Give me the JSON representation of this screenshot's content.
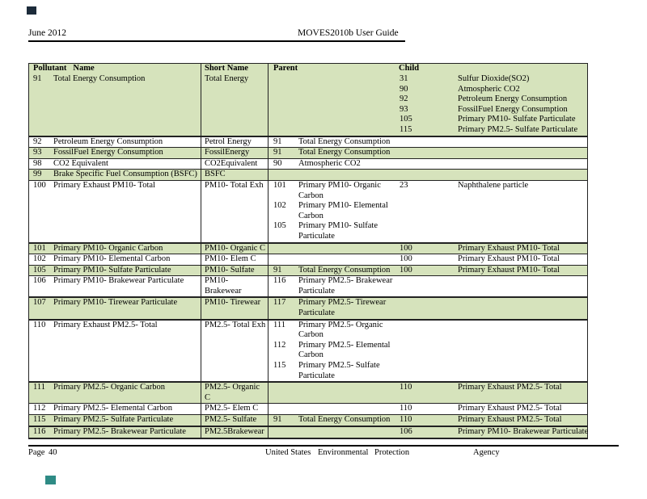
{
  "header": {
    "date": "June 2012",
    "title": "MOVES2010b User Guide"
  },
  "footer": {
    "page_label": "Page",
    "page_number": "40",
    "org": [
      "United States",
      "Environmental",
      "Protection",
      "Agency"
    ]
  },
  "annotations": {
    "top_left_square_color": "#1c2b3a",
    "bottom_left_square_color": "#2e8b85"
  },
  "table": {
    "columns": {
      "pollutant": "Pollutant",
      "name": "Name",
      "short_name": "Short Name",
      "parent": "Parent",
      "child": "Child"
    },
    "colors": {
      "row_green": "#d6e3bc",
      "row_white": "#ffffff",
      "border": "#222222"
    },
    "rows": [
      {
        "id": "91",
        "name": "Total Energy Consumption",
        "short": "Total Energy",
        "parents": [],
        "children": [
          {
            "id": "31",
            "name": "Sulfur Dioxide(SO2)"
          },
          {
            "id": "90",
            "name": "Atmospheric CO2"
          },
          {
            "id": "92",
            "name": "Petroleum Energy Consumption"
          },
          {
            "id": "93",
            "name": "FossilFuel Energy Consumption"
          },
          {
            "id": "105",
            "name": "Primary PM10- Sulfate Particulate"
          },
          {
            "id": "115",
            "name": "Primary PM2.5- Sulfate Particulate"
          }
        ],
        "green": true,
        "thick": true
      },
      {
        "id": "92",
        "name": "Petroleum Energy Consumption",
        "short": "Petrol Energy",
        "parents": [
          {
            "id": "91",
            "name": "Total Energy Consumption"
          }
        ],
        "children": [],
        "green": false,
        "thick": false
      },
      {
        "id": "93",
        "name": "FossilFuel Energy Consumption",
        "short": "FossilEnergy",
        "parents": [
          {
            "id": "91",
            "name": "Total Energy Consumption"
          }
        ],
        "children": [],
        "green": true,
        "thick": false
      },
      {
        "id": "98",
        "name": "CO2 Equivalent",
        "short": "CO2Equivalent",
        "parents": [
          {
            "id": "90",
            "name": "Atmospheric CO2"
          }
        ],
        "children": [],
        "green": false,
        "thick": false
      },
      {
        "id": "99",
        "name": "Brake Specific Fuel Consumption (BSFC)",
        "short": "BSFC",
        "parents": [],
        "children": [],
        "green": true,
        "thick": false
      },
      {
        "id": "100",
        "name": "Primary Exhaust PM10-  Total",
        "short": "PM10- Total Exh",
        "parents": [
          {
            "id": "101",
            "name": "Primary PM10- Organic Carbon"
          },
          {
            "id": "102",
            "name": "Primary PM10- Elemental Carbon"
          },
          {
            "id": "105",
            "name": "Primary PM10- Sulfate Particulate"
          }
        ],
        "children": [
          {
            "id": "23",
            "name": "Naphthalene particle"
          }
        ],
        "green": false,
        "thick": true
      },
      {
        "id": "101",
        "name": "Primary PM10- Organic Carbon",
        "short": "PM10- Organic C",
        "parents": [],
        "children": [
          {
            "id": "100",
            "name": "Primary Exhaust PM10-  Total"
          }
        ],
        "green": true,
        "thick": false
      },
      {
        "id": "102",
        "name": "Primary PM10- Elemental Carbon",
        "short": "PM10- Elem C",
        "parents": [],
        "children": [
          {
            "id": "100",
            "name": "Primary Exhaust PM10-  Total"
          }
        ],
        "green": false,
        "thick": false
      },
      {
        "id": "105",
        "name": "Primary PM10- Sulfate Particulate",
        "short": "PM10- Sulfate",
        "parents": [
          {
            "id": "91",
            "name": "Total Energy Consumption"
          }
        ],
        "children": [
          {
            "id": "100",
            "name": "Primary Exhaust PM10-  Total"
          }
        ],
        "green": true,
        "thick": false
      },
      {
        "id": "106",
        "name": "Primary PM10- Brakewear  Particulate",
        "short": "PM10-\nBrakewear",
        "parents": [
          {
            "id": "116",
            "name": "Primary PM2.5- Brakewear Particulate"
          }
        ],
        "children": [],
        "green": false,
        "thick": true
      },
      {
        "id": "107",
        "name": "Primary PM10- Tirewear  Particulate",
        "short": "PM10- Tirewear",
        "parents": [
          {
            "id": "117",
            "name": "Primary PM2.5- Tirewear Particulate"
          }
        ],
        "children": [],
        "green": true,
        "thick": true
      },
      {
        "id": "110",
        "name": "Primary Exhaust PM2.5- Total",
        "short": "PM2.5- Total Exh",
        "parents": [
          {
            "id": "111",
            "name": "Primary PM2.5- Organic Carbon"
          },
          {
            "id": "112",
            "name": "Primary PM2.5- Elemental Carbon"
          },
          {
            "id": "115",
            "name": "Primary PM2.5- Sulfate Particulate"
          }
        ],
        "children": [],
        "green": false,
        "thick": true
      },
      {
        "id": "111",
        "name": "Primary PM2.5- Organic  Carbon",
        "short": "PM2.5- Organic\nC",
        "parents": [],
        "children": [
          {
            "id": "110",
            "name": "Primary Exhaust PM2.5- Total"
          }
        ],
        "green": true,
        "thick": false
      },
      {
        "id": "112",
        "name": "Primary PM2.5- Elemental  Carbon",
        "short": "PM2.5- Elem C",
        "parents": [],
        "children": [
          {
            "id": "110",
            "name": "Primary Exhaust PM2.5- Total"
          }
        ],
        "green": false,
        "thick": false
      },
      {
        "id": "115",
        "name": "Primary PM2.5- Sulfate  Particulate",
        "short": "PM2.5- Sulfate",
        "parents": [
          {
            "id": "91",
            "name": "Total Energy Consumption"
          }
        ],
        "children": [
          {
            "id": "110",
            "name": "Primary Exhaust PM2.5- Total"
          }
        ],
        "green": true,
        "thick": true
      },
      {
        "id": "116",
        "name": "Primary PM2.5- Brakewear  Particulate",
        "short": "PM2.5Brakewear",
        "parents": [],
        "children": [
          {
            "id": "106",
            "name": "Primary PM10- Brakewear Particulate"
          }
        ],
        "green": true,
        "thick": false
      }
    ]
  }
}
